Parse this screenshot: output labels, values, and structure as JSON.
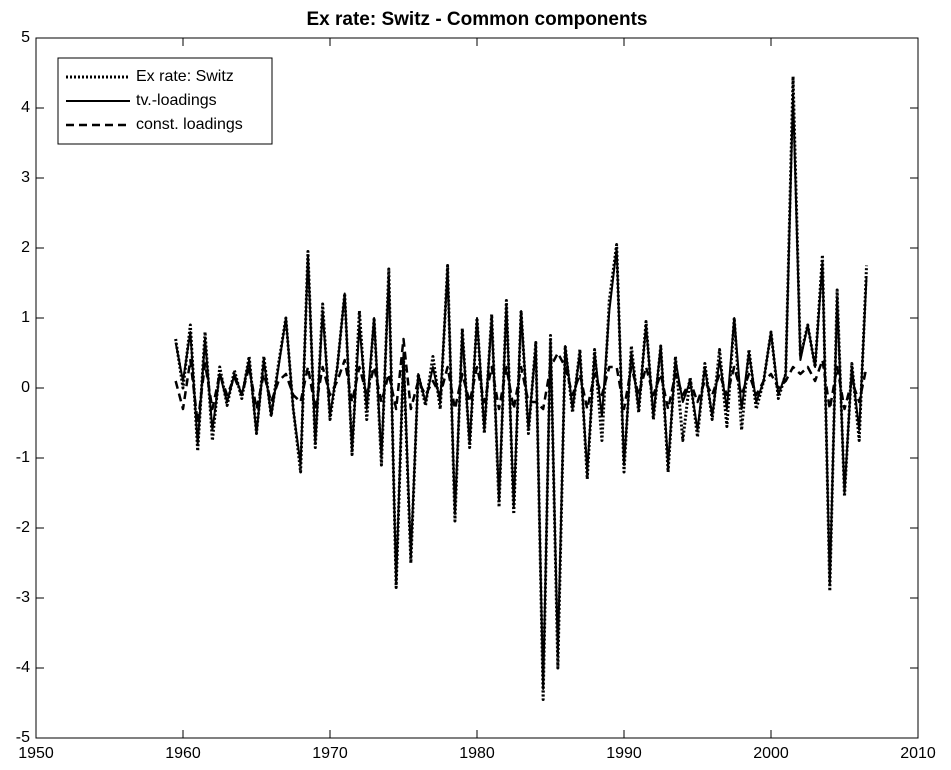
{
  "chart_data": {
    "type": "line",
    "title": "Ex rate: Switz - Common components",
    "x": [
      1959.5,
      1960,
      1960.5,
      1961,
      1961.5,
      1962,
      1962.5,
      1963,
      1963.5,
      1964,
      1964.5,
      1965,
      1965.5,
      1966,
      1966.5,
      1967,
      1967.5,
      1968,
      1968.5,
      1969,
      1969.5,
      1970,
      1970.5,
      1971,
      1971.5,
      1972,
      1972.5,
      1973,
      1973.5,
      1974,
      1974.5,
      1975,
      1975.5,
      1976,
      1976.5,
      1977,
      1977.5,
      1978,
      1978.5,
      1979,
      1979.5,
      1980,
      1980.5,
      1981,
      1981.5,
      1982,
      1982.5,
      1983,
      1983.5,
      1984,
      1984.5,
      1985,
      1985.5,
      1986,
      1986.5,
      1987,
      1987.5,
      1988,
      1988.5,
      1989,
      1989.5,
      1990,
      1990.5,
      1991,
      1991.5,
      1992,
      1992.5,
      1993,
      1993.5,
      1994,
      1994.5,
      1995,
      1995.5,
      1996,
      1996.5,
      1997,
      1997.5,
      1998,
      1998.5,
      1999,
      1999.5,
      2000,
      2000.5,
      2001,
      2001.5,
      2002,
      2002.5,
      2003,
      2003.5,
      2004,
      2004.5,
      2005,
      2005.5,
      2006,
      2006.5
    ],
    "series": [
      {
        "name": "Ex rate: Switz",
        "color": "#000000",
        "style": "dotted",
        "values": [
          0.7,
          0.0,
          0.9,
          -0.9,
          0.8,
          -0.75,
          0.3,
          -0.25,
          0.25,
          -0.15,
          0.45,
          -0.65,
          0.45,
          -0.4,
          0.35,
          1.0,
          -0.3,
          -1.2,
          1.95,
          -0.85,
          1.2,
          -0.45,
          0.3,
          1.35,
          -0.95,
          1.1,
          -0.45,
          1.0,
          -1.1,
          1.7,
          -2.85,
          0.45,
          -2.5,
          0.2,
          -0.25,
          0.45,
          -0.3,
          1.75,
          -1.9,
          0.85,
          -0.85,
          1.0,
          -0.65,
          1.05,
          -1.7,
          1.25,
          -1.8,
          1.1,
          -0.65,
          0.65,
          -4.45,
          0.75,
          -4.0,
          0.6,
          -0.35,
          0.55,
          -1.3,
          0.55,
          -0.75,
          1.25,
          2.05,
          -1.2,
          0.6,
          -0.35,
          0.95,
          -0.45,
          0.6,
          -1.2,
          0.45,
          -0.75,
          0.15,
          -0.7,
          0.35,
          -0.45,
          0.55,
          -0.55,
          1.0,
          -0.6,
          0.55,
          -0.3,
          0.1,
          0.8,
          -0.15,
          0.2,
          4.45,
          0.45,
          0.9,
          0.3,
          1.9,
          -2.9,
          1.4,
          -1.55,
          0.35,
          -0.75,
          1.75
        ]
      },
      {
        "name": "tv.-loadings",
        "color": "#000000",
        "style": "solid",
        "values": [
          0.65,
          0.1,
          0.8,
          -0.8,
          0.7,
          -0.6,
          0.2,
          -0.2,
          0.2,
          -0.1,
          0.4,
          -0.65,
          0.4,
          -0.4,
          0.3,
          1.0,
          -0.3,
          -1.1,
          1.9,
          -0.8,
          1.1,
          -0.4,
          0.3,
          1.35,
          -0.9,
          0.9,
          -0.3,
          1.0,
          -1.0,
          1.6,
          -2.8,
          0.5,
          -2.4,
          0.2,
          -0.2,
          0.3,
          -0.2,
          1.7,
          -1.8,
          0.8,
          -0.8,
          1.0,
          -0.6,
          1.0,
          -1.6,
          1.2,
          -1.7,
          1.1,
          -0.6,
          0.6,
          -4.3,
          0.7,
          -3.8,
          0.6,
          -0.3,
          0.5,
          -1.2,
          0.5,
          -0.4,
          1.1,
          2.0,
          -1.1,
          0.5,
          -0.3,
          0.9,
          -0.4,
          0.6,
          -1.1,
          0.4,
          -0.2,
          0.1,
          -0.6,
          0.3,
          -0.4,
          0.4,
          -0.3,
          1.0,
          -0.3,
          0.5,
          -0.2,
          0.1,
          0.8,
          -0.1,
          0.2,
          4.2,
          0.4,
          0.9,
          0.3,
          1.8,
          -2.8,
          1.3,
          -1.5,
          0.3,
          -0.6,
          1.6
        ]
      },
      {
        "name": "const. loadings",
        "color": "#000000",
        "style": "dashed",
        "values": [
          0.1,
          -0.3,
          0.4,
          -0.5,
          0.35,
          -0.3,
          0.2,
          -0.1,
          0.15,
          -0.1,
          0.3,
          -0.3,
          0.2,
          -0.2,
          0.1,
          0.2,
          -0.1,
          -0.2,
          0.3,
          -0.3,
          0.3,
          -0.1,
          0.1,
          0.4,
          -0.2,
          0.3,
          -0.1,
          0.3,
          -0.2,
          0.2,
          -0.3,
          0.7,
          -0.3,
          0.1,
          -0.1,
          0.1,
          -0.1,
          0.3,
          -0.3,
          0.2,
          -0.2,
          0.3,
          -0.2,
          0.3,
          -0.3,
          0.3,
          -0.3,
          0.3,
          -0.2,
          -0.2,
          -0.3,
          0.3,
          0.5,
          0.3,
          -0.1,
          0.2,
          -0.3,
          0.2,
          -0.1,
          0.3,
          0.3,
          -0.3,
          0.3,
          -0.1,
          0.3,
          -0.1,
          0.2,
          -0.3,
          0.2,
          -0.1,
          0.1,
          -0.2,
          0.1,
          -0.1,
          0.2,
          -0.1,
          0.3,
          -0.1,
          0.2,
          -0.1,
          0.1,
          0.2,
          0.0,
          0.1,
          0.3,
          0.2,
          0.3,
          0.1,
          0.4,
          -0.3,
          0.3,
          -0.3,
          0.1,
          -0.2,
          0.3
        ]
      }
    ],
    "xlim": [
      1950,
      2010
    ],
    "xticks": [
      1950,
      1960,
      1970,
      1980,
      1990,
      2000,
      2010
    ],
    "ylim": [
      -5,
      5
    ],
    "yticks": [
      -5,
      -4,
      -3,
      -2,
      -1,
      0,
      1,
      2,
      3,
      4,
      5
    ],
    "grid": false,
    "legend": "upper left"
  }
}
